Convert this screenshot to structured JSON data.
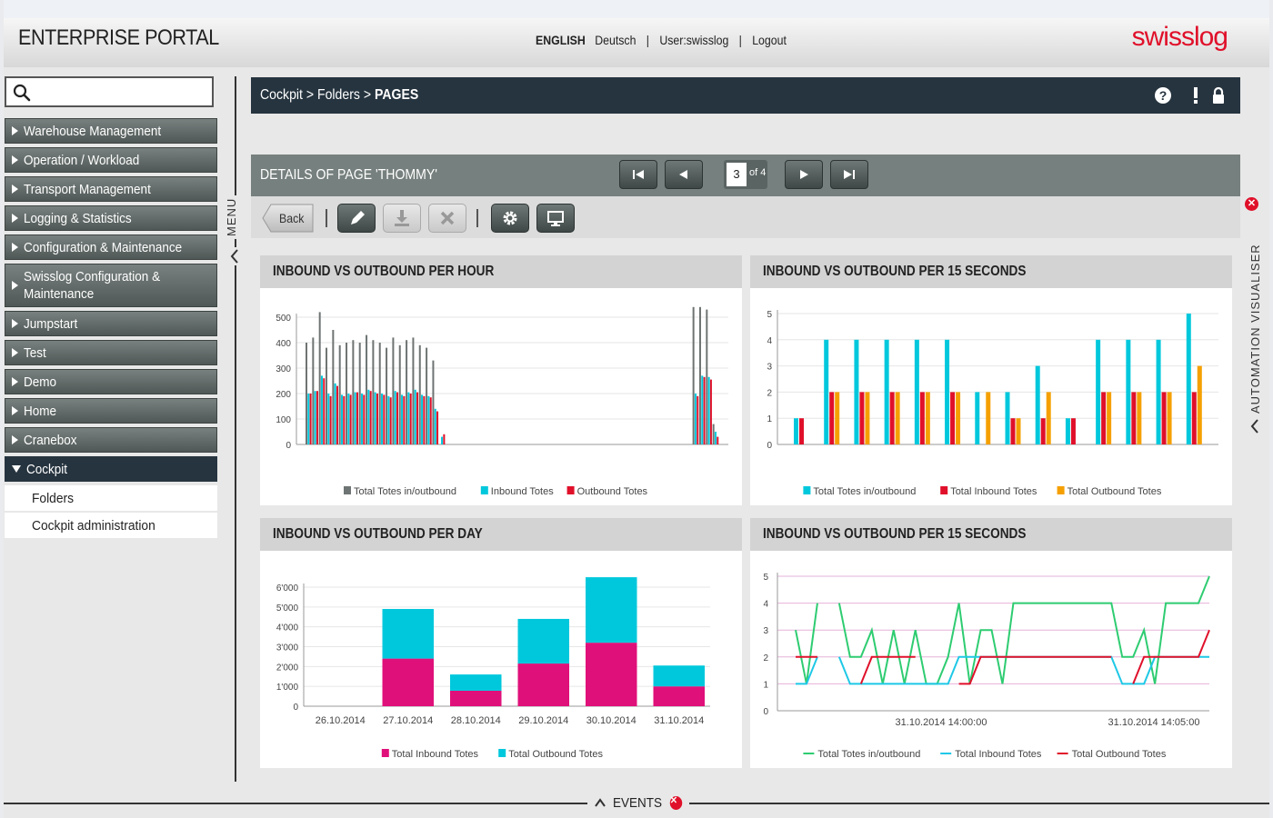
{
  "header": {
    "app_title": "ENTERPRISE PORTAL",
    "lang_active": "ENGLISH",
    "lang_other": "Deutsch",
    "user": "User:swisslog",
    "logout": "Logout",
    "logo": "swisslog",
    "logo_color": "#e0102a"
  },
  "search": {
    "placeholder": "",
    "icon": "search-icon"
  },
  "sidebar": {
    "items": [
      {
        "label": "Warehouse Management"
      },
      {
        "label": "Operation / Workload"
      },
      {
        "label": "Transport Management"
      },
      {
        "label": "Logging & Statistics"
      },
      {
        "label": "Configuration & Maintenance"
      },
      {
        "label": "Swisslog Configuration & Maintenance"
      },
      {
        "label": "Jumpstart"
      },
      {
        "label": "Test"
      },
      {
        "label": "Demo"
      },
      {
        "label": "Home"
      },
      {
        "label": "Cranebox"
      },
      {
        "label": "Cockpit"
      }
    ],
    "sub_items": [
      {
        "label": "Folders"
      },
      {
        "label": "Cockpit administration"
      }
    ],
    "menu_label": "MENU"
  },
  "breadcrumb": {
    "part1": "Cockpit",
    "sep": " > ",
    "part2": "Folders",
    "current": "PAGES"
  },
  "details": {
    "title": "DETAILS OF PAGE 'THOMMY'",
    "page": "3",
    "of": "of 4"
  },
  "toolbar": {
    "back": "Back"
  },
  "right_panel_label": "AUTOMATION VISUALISER",
  "events_label": "EVENTS",
  "chart_data": [
    {
      "type": "bar",
      "title": "INBOUND VS OUTBOUND PER HOUR",
      "ylim": [
        0,
        500
      ],
      "yticks": [
        0,
        100,
        200,
        300,
        400,
        500
      ],
      "colors": [
        "#6e7473",
        "#00c8dc",
        "#e0102a"
      ],
      "series": [
        {
          "name": "Total Totes in/outbound",
          "values": [
            400,
            420,
            520,
            380,
            450,
            390,
            400,
            410,
            400,
            430,
            410,
            400,
            380,
            420,
            390,
            410,
            420,
            390,
            380,
            330,
            0,
            0,
            0,
            0,
            0,
            0,
            0,
            0,
            0,
            0,
            0,
            0,
            0,
            0,
            0,
            0,
            0,
            0,
            0,
            0,
            0,
            0,
            0,
            0,
            0,
            0,
            0,
            0,
            0,
            0,
            0,
            0,
            0,
            0,
            0,
            0,
            0,
            0,
            540,
            540,
            530,
            80
          ]
        },
        {
          "name": "Inbound Totes",
          "values": [
            200,
            210,
            270,
            200,
            240,
            195,
            200,
            205,
            200,
            215,
            205,
            200,
            190,
            210,
            195,
            205,
            215,
            195,
            190,
            140,
            30,
            0,
            0,
            0,
            0,
            0,
            0,
            0,
            0,
            0,
            0,
            0,
            0,
            0,
            0,
            0,
            0,
            0,
            0,
            0,
            0,
            0,
            0,
            0,
            0,
            0,
            0,
            0,
            0,
            0,
            0,
            0,
            0,
            0,
            0,
            0,
            0,
            0,
            200,
            270,
            265,
            50
          ]
        },
        {
          "name": "Outbound Totes",
          "values": [
            200,
            210,
            260,
            190,
            230,
            190,
            195,
            205,
            195,
            210,
            200,
            195,
            185,
            205,
            190,
            200,
            205,
            190,
            185,
            130,
            40,
            0,
            0,
            0,
            0,
            0,
            0,
            0,
            0,
            0,
            0,
            0,
            0,
            0,
            0,
            0,
            0,
            0,
            0,
            0,
            0,
            0,
            0,
            0,
            0,
            0,
            0,
            0,
            0,
            0,
            0,
            0,
            0,
            0,
            0,
            0,
            0,
            0,
            190,
            265,
            255,
            30
          ]
        }
      ]
    },
    {
      "type": "bar",
      "title": "INBOUND VS OUTBOUND PER 15 SECONDS",
      "ylim": [
        0,
        5
      ],
      "yticks": [
        0,
        1,
        2,
        3,
        4,
        5
      ],
      "colors": [
        "#00c8dc",
        "#e0102a",
        "#f5a000"
      ],
      "series": [
        {
          "name": "Total Totes in/outbound",
          "values": [
            1,
            4,
            4,
            4,
            4,
            4,
            2,
            2,
            3,
            1,
            4,
            4,
            4,
            5
          ]
        },
        {
          "name": "Total Inbound Totes",
          "values": [
            1,
            2,
            2,
            2,
            2,
            2,
            0,
            1,
            1,
            1,
            2,
            2,
            2,
            2
          ]
        },
        {
          "name": "Total Outbound Totes",
          "values": [
            0,
            2,
            2,
            2,
            2,
            2,
            2,
            1,
            2,
            0,
            2,
            2,
            2,
            3
          ]
        }
      ]
    },
    {
      "type": "bar",
      "stacked": true,
      "title": "INBOUND VS OUTBOUND PER DAY",
      "ylim": [
        0,
        6000
      ],
      "yticks": [
        "0",
        "1'000",
        "2'000",
        "3'000",
        "4'000",
        "5'000",
        "6'000"
      ],
      "categories": [
        "26.10.2014",
        "27.10.2014",
        "28.10.2014",
        "29.10.2014",
        "30.10.2014",
        "31.10.2014"
      ],
      "colors": [
        "#e0107a",
        "#00c8dc"
      ],
      "series": [
        {
          "name": "Total Inbound Totes",
          "values": [
            0,
            2400,
            780,
            2150,
            3200,
            1000
          ]
        },
        {
          "name": "Total Outbound Totes",
          "values": [
            0,
            2500,
            820,
            2250,
            3300,
            1050
          ]
        }
      ]
    },
    {
      "type": "line",
      "title": "INBOUND VS OUTBOUND PER 15 SECONDS",
      "ylim": [
        0,
        5
      ],
      "yticks": [
        0,
        1,
        2,
        3,
        4,
        5
      ],
      "xticks": [
        "31.10.2014 14:00:00",
        "31.10.2014 14:05:00"
      ],
      "colors": [
        "#2ecc71",
        "#1ec8e6",
        "#e0102a"
      ],
      "series": [
        {
          "name": "Total Totes in/outbound",
          "values": [
            3,
            1,
            4,
            null,
            4,
            2,
            2,
            3,
            1,
            3,
            1,
            3,
            1,
            1,
            2,
            4,
            1,
            3,
            3,
            1,
            4,
            4,
            4,
            4,
            4,
            4,
            4,
            4,
            4,
            4,
            2,
            2,
            3,
            1,
            4,
            4,
            4,
            4,
            5
          ]
        },
        {
          "name": "Total Inbound Totes",
          "values": [
            1,
            1,
            2,
            null,
            2,
            1,
            1,
            1,
            1,
            1,
            1,
            1,
            1,
            1,
            1,
            2,
            2,
            2,
            2,
            2,
            2,
            2,
            2,
            2,
            2,
            2,
            2,
            2,
            2,
            2,
            1,
            1,
            1,
            2,
            2,
            2,
            2,
            2,
            2
          ]
        },
        {
          "name": "Total Outbound Totes",
          "values": [
            2,
            2,
            2,
            null,
            null,
            null,
            1,
            2,
            2,
            2,
            2,
            2,
            null,
            null,
            null,
            1,
            1,
            2,
            2,
            2,
            2,
            2,
            2,
            2,
            2,
            2,
            2,
            2,
            2,
            2,
            null,
            1,
            2,
            2,
            2,
            2,
            2,
            2,
            3
          ]
        }
      ]
    }
  ]
}
